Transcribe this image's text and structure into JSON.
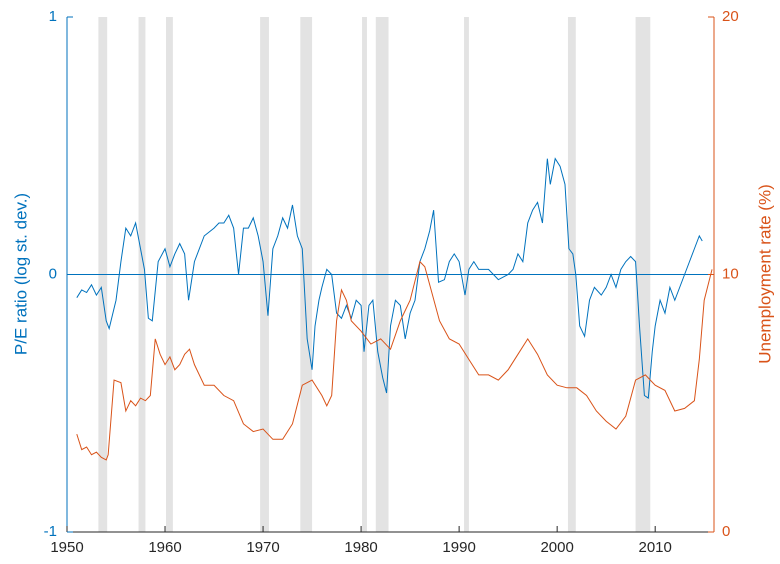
{
  "chart_data": {
    "type": "line",
    "y_label": "P/E ratio (log st. dev.)",
    "y2_label": "Unemployment rate (%)",
    "xlim": [
      1950,
      2016
    ],
    "xticks": [
      1950,
      1960,
      1970,
      1980,
      1990,
      2000,
      2010
    ],
    "ylim": [
      -1,
      1
    ],
    "yticks": [
      -1,
      0,
      1
    ],
    "y2lim": [
      0,
      20
    ],
    "y2ticks": [
      0,
      10,
      20
    ],
    "hline": 0,
    "shade_color": "#e3e3e3",
    "recessions": [
      [
        1953.2,
        1954.1
      ],
      [
        1957.3,
        1958.0
      ],
      [
        1960.1,
        1960.8
      ],
      [
        1969.7,
        1970.6
      ],
      [
        1973.8,
        1975.0
      ],
      [
        1980.1,
        1980.6
      ],
      [
        1981.5,
        1982.8
      ],
      [
        1990.5,
        1991.0
      ],
      [
        2001.1,
        2001.9
      ],
      [
        2008.0,
        2009.5
      ]
    ],
    "series": [
      {
        "name": "P/E ratio",
        "color": "#0072BD",
        "axis": "y",
        "x": [
          1951,
          1951.5,
          1952,
          1952.5,
          1953,
          1953.5,
          1954,
          1954.3,
          1955,
          1955.5,
          1956,
          1956.5,
          1957,
          1957.5,
          1957.9,
          1958.3,
          1958.7,
          1959.3,
          1960,
          1960.5,
          1961,
          1961.5,
          1962,
          1962.4,
          1963,
          1964,
          1965,
          1965.5,
          1966,
          1966.5,
          1967,
          1967.5,
          1968,
          1968.5,
          1969,
          1969.5,
          1970,
          1970.5,
          1971,
          1971.5,
          1972,
          1972.5,
          1973,
          1973.5,
          1974,
          1974.5,
          1975,
          1975.3,
          1975.7,
          1976,
          1976.5,
          1977,
          1977.5,
          1978,
          1978.5,
          1979,
          1979.5,
          1980,
          1980.3,
          1980.8,
          1981.2,
          1981.7,
          1982.2,
          1982.6,
          1983,
          1983.5,
          1984,
          1984.5,
          1985,
          1985.5,
          1986,
          1986.5,
          1987,
          1987.4,
          1987.9,
          1988.5,
          1989,
          1989.5,
          1990,
          1990.6,
          1991,
          1991.5,
          1992,
          1993,
          1994,
          1995,
          1995.5,
          1996,
          1996.5,
          1997,
          1997.5,
          1998,
          1998.5,
          1999,
          1999.3,
          1999.8,
          2000.3,
          2000.8,
          2001.2,
          2001.6,
          2001.9,
          2002.3,
          2002.8,
          2003.3,
          2003.8,
          2004.5,
          2005,
          2005.5,
          2006,
          2006.5,
          2007,
          2007.5,
          2008,
          2008.4,
          2008.9,
          2009.3,
          2009.7,
          2010,
          2010.5,
          2011,
          2011.5,
          2012,
          2012.5,
          2013,
          2013.5,
          2014,
          2014.5,
          2014.8
        ],
        "values": [
          -0.09,
          -0.06,
          -0.07,
          -0.04,
          -0.08,
          -0.05,
          -0.18,
          -0.21,
          -0.1,
          0.05,
          0.18,
          0.15,
          0.2,
          0.1,
          0.02,
          -0.17,
          -0.18,
          0.05,
          0.1,
          0.03,
          0.08,
          0.12,
          0.08,
          -0.1,
          0.05,
          0.15,
          0.18,
          0.2,
          0.2,
          0.23,
          0.18,
          0.0,
          0.18,
          0.18,
          0.22,
          0.15,
          0.05,
          -0.16,
          0.1,
          0.15,
          0.22,
          0.18,
          0.27,
          0.15,
          0.1,
          -0.25,
          -0.37,
          -0.2,
          -0.1,
          -0.05,
          0.02,
          0.0,
          -0.15,
          -0.17,
          -0.12,
          -0.17,
          -0.1,
          -0.12,
          -0.3,
          -0.12,
          -0.1,
          -0.3,
          -0.4,
          -0.46,
          -0.2,
          -0.1,
          -0.12,
          -0.25,
          -0.15,
          -0.1,
          0.05,
          0.1,
          0.17,
          0.25,
          -0.03,
          -0.02,
          0.05,
          0.08,
          0.05,
          -0.08,
          0.02,
          0.05,
          0.02,
          0.02,
          -0.02,
          0.0,
          0.02,
          0.08,
          0.05,
          0.2,
          0.25,
          0.28,
          0.2,
          0.45,
          0.35,
          0.45,
          0.42,
          0.35,
          0.1,
          0.08,
          0.0,
          -0.2,
          -0.24,
          -0.1,
          -0.05,
          -0.08,
          -0.05,
          0.0,
          -0.05,
          0.02,
          0.05,
          0.07,
          0.05,
          -0.2,
          -0.47,
          -0.48,
          -0.3,
          -0.2,
          -0.1,
          -0.15,
          -0.05,
          -0.1,
          -0.05,
          0.0,
          0.05,
          0.1,
          0.15,
          0.13
        ]
      },
      {
        "name": "Unemployment rate",
        "color": "#D95319",
        "axis": "y2",
        "x": [
          1951,
          1951.5,
          1952,
          1952.5,
          1953,
          1953.5,
          1954,
          1954.2,
          1954.8,
          1955.5,
          1956,
          1956.5,
          1957,
          1957.5,
          1958,
          1958.5,
          1959,
          1959.5,
          1960,
          1960.5,
          1961,
          1961.5,
          1962,
          1962.5,
          1963,
          1964,
          1965,
          1966,
          1967,
          1968,
          1969,
          1970,
          1971,
          1972,
          1973,
          1974,
          1975,
          1976,
          1976.5,
          1977,
          1977.5,
          1978,
          1978.5,
          1979,
          1980,
          1981,
          1982,
          1983,
          1984,
          1985,
          1986,
          1986.5,
          1987,
          1988,
          1989,
          1990,
          1991,
          1992,
          1993,
          1994,
          1995,
          1996,
          1997,
          1998,
          1999,
          2000,
          2001,
          2002,
          2003,
          2004,
          2005,
          2006,
          2007,
          2008,
          2009,
          2010,
          2011,
          2012,
          2013,
          2014,
          2014.5,
          2015,
          2015.8
        ],
        "values": [
          3.8,
          3.2,
          3.3,
          3.0,
          3.1,
          2.9,
          2.8,
          3.0,
          5.9,
          5.8,
          4.7,
          5.1,
          4.9,
          5.2,
          5.1,
          5.3,
          7.5,
          6.9,
          6.5,
          6.8,
          6.3,
          6.5,
          6.9,
          7.1,
          6.5,
          5.7,
          5.7,
          5.3,
          5.1,
          4.2,
          3.9,
          4.0,
          3.6,
          3.6,
          4.2,
          5.7,
          5.9,
          5.3,
          4.9,
          5.3,
          8.2,
          9.4,
          9.0,
          8.2,
          7.8,
          7.3,
          7.5,
          7.1,
          8.2,
          9.0,
          10.5,
          10.3,
          9.6,
          8.2,
          7.5,
          7.3,
          6.7,
          6.1,
          6.1,
          5.9,
          6.3,
          6.9,
          7.5,
          6.9,
          6.1,
          5.7,
          5.6,
          5.6,
          5.3,
          4.7,
          4.3,
          4.0,
          4.5,
          5.9,
          6.1,
          5.7,
          5.5,
          4.7,
          4.8,
          5.1,
          6.7,
          9.0,
          10.2
        ]
      }
    ]
  }
}
